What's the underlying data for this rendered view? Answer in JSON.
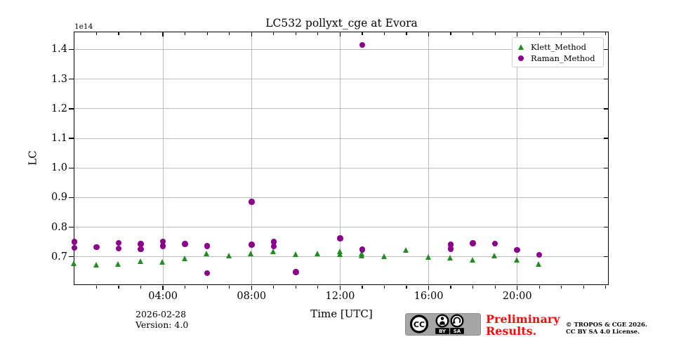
{
  "title": "LC532 pollyxt_cge at Evora",
  "axes": {
    "ylabel": "LC",
    "xlabel": "Time [UTC]",
    "offset_label": "1e14"
  },
  "legend": {
    "items": [
      {
        "label": "Klett_Method",
        "marker": "triangle",
        "color": "#228B22"
      },
      {
        "label": "Raman_Method",
        "marker": "circle",
        "color": "#8B008B"
      }
    ]
  },
  "footer": {
    "date": "2026-02-28",
    "version": "Version: 4.0",
    "preliminary": "Preliminary Results.",
    "copyright_line1": "© TROPOS & CGE 2026.",
    "copyright_line2": "CC BY SA 4.0 License.",
    "cc_badge": {
      "cc": "CC",
      "by": "BY",
      "sa": "SA"
    }
  },
  "chart_data": {
    "type": "scatter",
    "title": "LC532 pollyxt_cge at Evora",
    "xlabel": "Time [UTC]",
    "ylabel": "LC",
    "y_offset_factor": "1e14",
    "xlim_hours": [
      0,
      24.1
    ],
    "ylim": [
      0.607,
      1.458
    ],
    "x_major_tick_hours": [
      4,
      8,
      12,
      16,
      20
    ],
    "x_major_tick_labels": [
      "04:00",
      "08:00",
      "12:00",
      "16:00",
      "20:00"
    ],
    "x_minor_tick_step_hours": 1,
    "y_ticks": [
      0.7,
      0.8,
      0.9,
      1.0,
      1.1,
      1.2,
      1.3,
      1.4
    ],
    "grid": true,
    "legend_position": "upper right",
    "series": [
      {
        "name": "Klett_Method",
        "marker": "triangle",
        "color": "#228B22",
        "points": [
          [
            0,
            0.675
          ],
          [
            1,
            0.671
          ],
          [
            2,
            0.673
          ],
          [
            3,
            0.683
          ],
          [
            4,
            0.679
          ],
          [
            5,
            0.692
          ],
          [
            6,
            0.709
          ],
          [
            7,
            0.702
          ],
          [
            8,
            0.709
          ],
          [
            9,
            0.715
          ],
          [
            10,
            0.705
          ],
          [
            11,
            0.709
          ],
          [
            12,
            0.716
          ],
          [
            12,
            0.705
          ],
          [
            13,
            0.707
          ],
          [
            13,
            0.7
          ],
          [
            14,
            0.699
          ],
          [
            15,
            0.721
          ],
          [
            16,
            0.695
          ],
          [
            17,
            0.694
          ],
          [
            18,
            0.687
          ],
          [
            19,
            0.702
          ],
          [
            20,
            0.687
          ],
          [
            21,
            0.672
          ]
        ]
      },
      {
        "name": "Raman_Method",
        "marker": "circle",
        "color": "#8B008B",
        "points": [
          [
            0,
            0.75
          ],
          [
            0,
            0.73
          ],
          [
            1,
            0.733
          ],
          [
            2,
            0.747
          ],
          [
            2,
            0.728
          ],
          [
            3,
            0.743
          ],
          [
            3,
            0.725
          ],
          [
            4,
            0.752
          ],
          [
            4,
            0.736
          ],
          [
            5,
            0.743
          ],
          [
            6,
            0.736
          ],
          [
            6,
            0.645
          ],
          [
            8,
            0.885
          ],
          [
            8,
            0.741
          ],
          [
            9,
            0.75
          ],
          [
            9,
            0.735
          ],
          [
            10,
            0.648
          ],
          [
            12,
            0.762
          ],
          [
            13,
            1.415
          ],
          [
            13,
            0.724
          ],
          [
            17,
            0.741
          ],
          [
            17,
            0.727
          ],
          [
            18,
            0.746
          ],
          [
            19,
            0.744
          ],
          [
            20,
            0.723
          ],
          [
            21,
            0.707
          ]
        ]
      }
    ]
  }
}
